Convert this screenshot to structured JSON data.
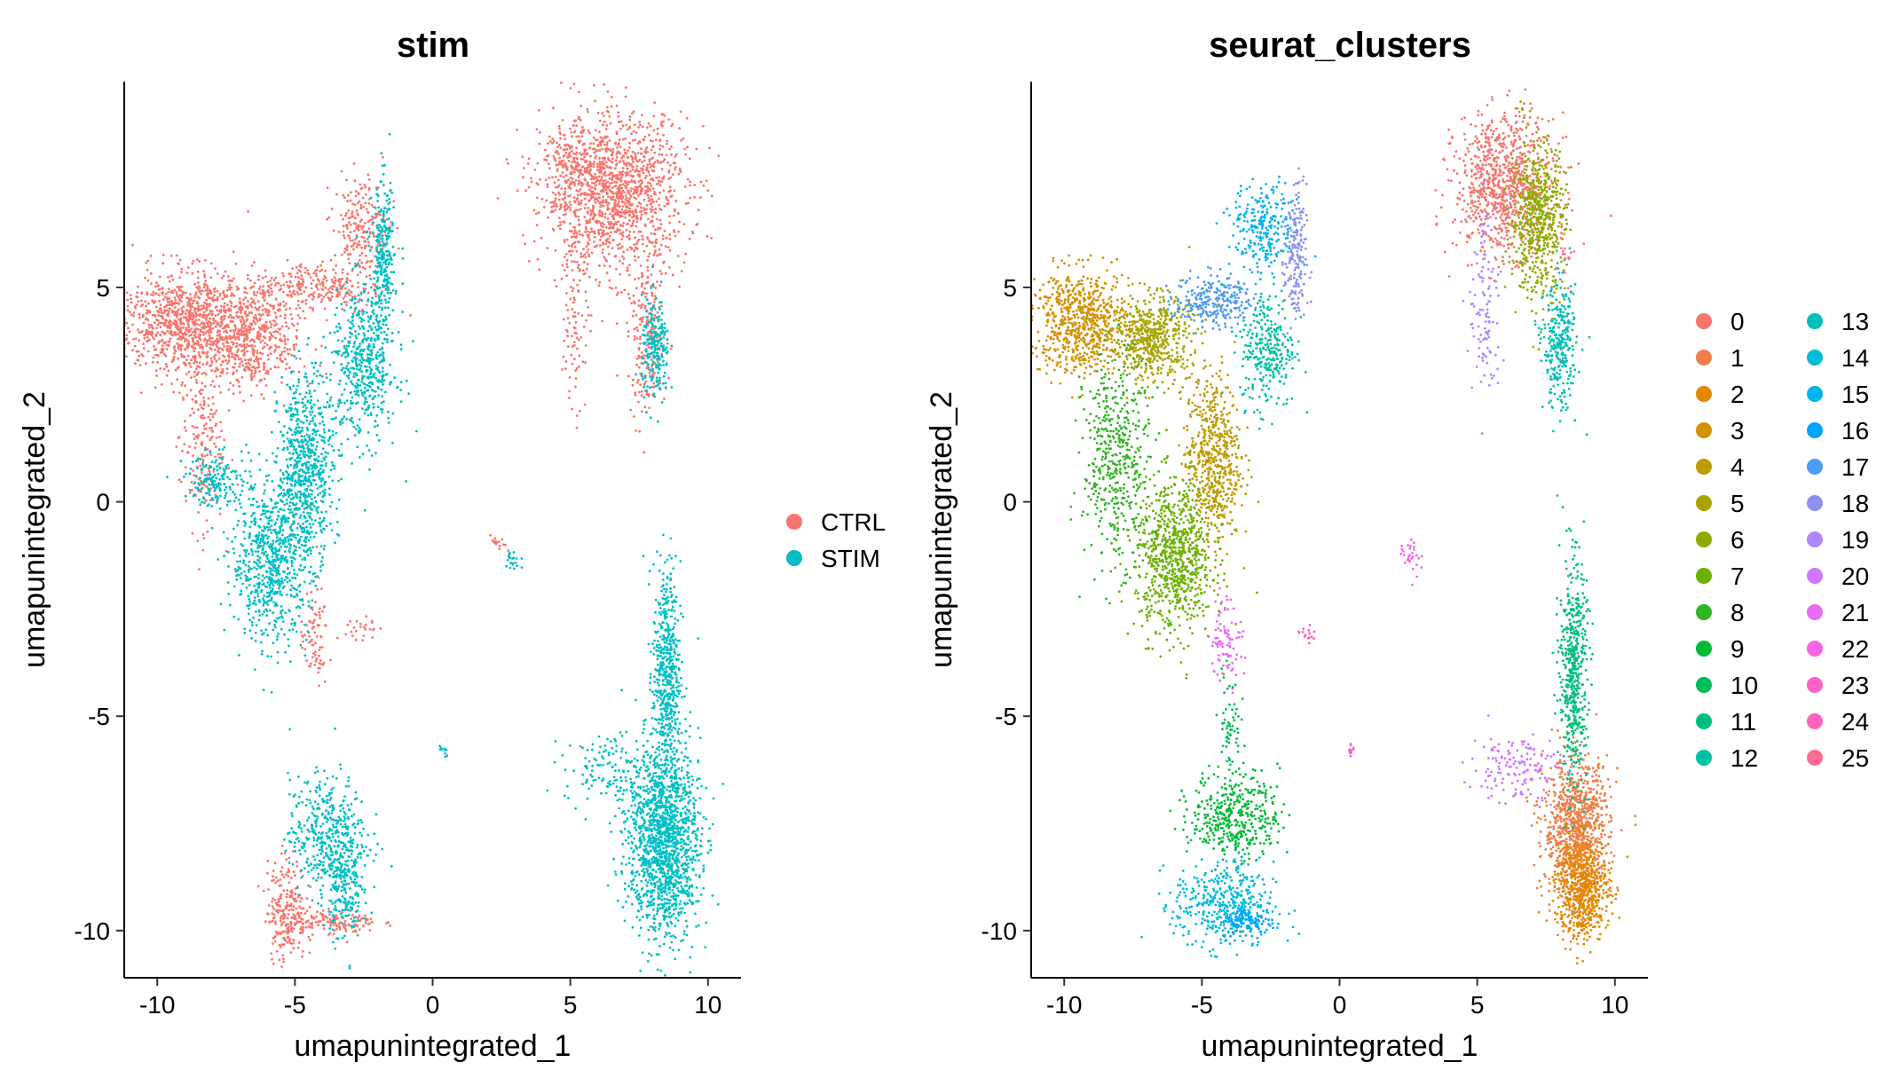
{
  "chart_data": [
    {
      "type": "scatter",
      "title": "stim",
      "xlabel": "umapunintegrated_1",
      "ylabel": "umapunintegrated_2",
      "xlim": [
        -11.2,
        11.2
      ],
      "ylim": [
        -11.1,
        9.8
      ],
      "xticks": [
        -10,
        -5,
        0,
        5,
        10
      ],
      "yticks": [
        -10,
        -5,
        0,
        5
      ],
      "xtick_labels": [
        "-10",
        "-5",
        "0",
        "5",
        "10"
      ],
      "ytick_labels": [
        "-10",
        "-5",
        "0",
        "5"
      ],
      "grid": false,
      "legend_position": "right",
      "legend": [
        {
          "name": "CTRL",
          "color": "#F8766D"
        },
        {
          "name": "STIM",
          "color": "#00BFC4"
        }
      ],
      "point_color_by": "condition",
      "color_map": {
        "CTRL": "#F8766D",
        "STIM": "#00BFC4"
      },
      "regions": [
        {
          "group": "CTRL",
          "x": 6.6,
          "y": 7.2,
          "sx": 1.3,
          "sy": 0.9,
          "n": 1400
        },
        {
          "group": "CTRL",
          "x": 5.0,
          "y": 7.9,
          "sx": 0.5,
          "sy": 0.3,
          "n": 120
        },
        {
          "group": "CTRL",
          "x": 5.2,
          "y": 4.8,
          "sx": 0.25,
          "sy": 1.4,
          "n": 110
        },
        {
          "group": "CTRL",
          "x": 7.8,
          "y": 3.8,
          "sx": 0.35,
          "sy": 0.9,
          "n": 220
        },
        {
          "group": "CTRL",
          "x": -9.0,
          "y": 4.2,
          "sx": 1.2,
          "sy": 0.6,
          "n": 950
        },
        {
          "group": "CTRL",
          "x": -6.6,
          "y": 3.8,
          "sx": 0.9,
          "sy": 0.6,
          "n": 520
        },
        {
          "group": "CTRL",
          "x": -4.2,
          "y": 5.0,
          "sx": 1.2,
          "sy": 0.3,
          "n": 260
        },
        {
          "group": "CTRL",
          "x": -2.6,
          "y": 6.4,
          "sx": 0.5,
          "sy": 0.6,
          "n": 220
        },
        {
          "group": "CTRL",
          "x": -8.4,
          "y": 1.4,
          "sx": 0.4,
          "sy": 1.0,
          "n": 200
        },
        {
          "group": "CTRL",
          "x": -4.3,
          "y": -3.2,
          "sx": 0.25,
          "sy": 0.6,
          "n": 80
        },
        {
          "group": "CTRL",
          "x": -5.3,
          "y": -9.5,
          "sx": 0.35,
          "sy": 0.6,
          "n": 240
        },
        {
          "group": "CTRL",
          "x": -3.6,
          "y": -9.8,
          "sx": 0.8,
          "sy": 0.15,
          "n": 130
        },
        {
          "group": "CTRL",
          "x": 2.4,
          "y": -1.0,
          "sx": 0.15,
          "sy": 0.1,
          "n": 15
        },
        {
          "group": "CTRL",
          "x": -2.6,
          "y": -3.0,
          "sx": 0.3,
          "sy": 0.2,
          "n": 25
        },
        {
          "group": "STIM",
          "x": -2.5,
          "y": 3.2,
          "sx": 0.6,
          "sy": 0.9,
          "n": 520
        },
        {
          "group": "STIM",
          "x": -4.6,
          "y": 0.8,
          "sx": 0.5,
          "sy": 1.1,
          "n": 700
        },
        {
          "group": "STIM",
          "x": -5.9,
          "y": -1.4,
          "sx": 0.7,
          "sy": 0.9,
          "n": 700
        },
        {
          "group": "STIM",
          "x": -1.8,
          "y": 5.6,
          "sx": 0.2,
          "sy": 0.9,
          "n": 260
        },
        {
          "group": "STIM",
          "x": -7.8,
          "y": 0.5,
          "sx": 0.6,
          "sy": 0.3,
          "n": 170
        },
        {
          "group": "STIM",
          "x": 8.4,
          "y": -7.9,
          "sx": 0.65,
          "sy": 1.1,
          "n": 1550
        },
        {
          "group": "STIM",
          "x": 8.5,
          "y": -4.0,
          "sx": 0.25,
          "sy": 1.3,
          "n": 520
        },
        {
          "group": "STIM",
          "x": 6.4,
          "y": -6.2,
          "sx": 0.8,
          "sy": 0.4,
          "n": 130
        },
        {
          "group": "STIM",
          "x": -3.8,
          "y": -7.8,
          "sx": 0.7,
          "sy": 0.7,
          "n": 440
        },
        {
          "group": "STIM",
          "x": -3.2,
          "y": -9.0,
          "sx": 0.3,
          "sy": 0.6,
          "n": 180
        },
        {
          "group": "STIM",
          "x": 8.1,
          "y": 3.5,
          "sx": 0.25,
          "sy": 0.6,
          "n": 220
        },
        {
          "group": "STIM",
          "x": 2.9,
          "y": -1.4,
          "sx": 0.15,
          "sy": 0.2,
          "n": 20
        },
        {
          "group": "STIM",
          "x": 0.4,
          "y": -5.8,
          "sx": 0.08,
          "sy": 0.08,
          "n": 12
        }
      ]
    },
    {
      "type": "scatter",
      "title": "seurat_clusters",
      "xlabel": "umapunintegrated_1",
      "ylabel": "umapunintegrated_2",
      "xlim": [
        -11.2,
        11.2
      ],
      "ylim": [
        -11.1,
        9.8
      ],
      "xticks": [
        -10,
        -5,
        0,
        5,
        10
      ],
      "yticks": [
        -10,
        -5,
        0,
        5
      ],
      "xtick_labels": [
        "-10",
        "-5",
        "0",
        "5",
        "10"
      ],
      "ytick_labels": [
        "-10",
        "-5",
        "0",
        "5"
      ],
      "grid": false,
      "legend_position": "right",
      "legend_columns": 2,
      "legend": [
        {
          "name": "0",
          "color": "#F8766D"
        },
        {
          "name": "1",
          "color": "#EF7F49"
        },
        {
          "name": "2",
          "color": "#E38900"
        },
        {
          "name": "3",
          "color": "#D39200"
        },
        {
          "name": "4",
          "color": "#C09B00"
        },
        {
          "name": "5",
          "color": "#A9A400"
        },
        {
          "name": "6",
          "color": "#8EAB00"
        },
        {
          "name": "7",
          "color": "#6BB100"
        },
        {
          "name": "8",
          "color": "#31B425"
        },
        {
          "name": "9",
          "color": "#00BA38"
        },
        {
          "name": "10",
          "color": "#00BC59"
        },
        {
          "name": "11",
          "color": "#00BF7D"
        },
        {
          "name": "12",
          "color": "#00C1A3"
        },
        {
          "name": "13",
          "color": "#00C0B7"
        },
        {
          "name": "14",
          "color": "#00BCD8"
        },
        {
          "name": "15",
          "color": "#00B4EF"
        },
        {
          "name": "16",
          "color": "#00A5FF"
        },
        {
          "name": "17",
          "color": "#4E9BF5"
        },
        {
          "name": "18",
          "color": "#8F91EA"
        },
        {
          "name": "19",
          "color": "#AE87FF"
        },
        {
          "name": "20",
          "color": "#CF78FF"
        },
        {
          "name": "21",
          "color": "#E76BF3"
        },
        {
          "name": "22",
          "color": "#F564E3"
        },
        {
          "name": "23",
          "color": "#FF61C9"
        },
        {
          "name": "24",
          "color": "#FF62BC"
        },
        {
          "name": "25",
          "color": "#FF6C91"
        }
      ],
      "regions": [
        {
          "group": "0",
          "x": 6.0,
          "y": 7.4,
          "sx": 0.9,
          "sy": 0.8,
          "n": 900
        },
        {
          "group": "6",
          "x": 7.2,
          "y": 6.6,
          "sx": 0.5,
          "sy": 0.9,
          "n": 600
        },
        {
          "group": "19",
          "x": 5.3,
          "y": 4.6,
          "sx": 0.3,
          "sy": 1.3,
          "n": 120
        },
        {
          "group": "13",
          "x": 8.0,
          "y": 3.6,
          "sx": 0.3,
          "sy": 0.7,
          "n": 300
        },
        {
          "group": "25",
          "x": 8.2,
          "y": 5.8,
          "sx": 0.15,
          "sy": 0.2,
          "n": 15
        },
        {
          "group": "3",
          "x": -9.4,
          "y": 4.2,
          "sx": 0.9,
          "sy": 0.6,
          "n": 700
        },
        {
          "group": "5",
          "x": -6.8,
          "y": 3.8,
          "sx": 0.7,
          "sy": 0.5,
          "n": 550
        },
        {
          "group": "17",
          "x": -4.6,
          "y": 4.7,
          "sx": 0.7,
          "sy": 0.3,
          "n": 260
        },
        {
          "group": "15",
          "x": -2.7,
          "y": 6.4,
          "sx": 0.6,
          "sy": 0.5,
          "n": 260
        },
        {
          "group": "18",
          "x": -1.6,
          "y": 5.6,
          "sx": 0.2,
          "sy": 0.9,
          "n": 180
        },
        {
          "group": "12",
          "x": -2.6,
          "y": 3.6,
          "sx": 0.5,
          "sy": 0.7,
          "n": 300
        },
        {
          "group": "4",
          "x": -4.6,
          "y": 1.0,
          "sx": 0.5,
          "sy": 1.0,
          "n": 600
        },
        {
          "group": "7",
          "x": -6.0,
          "y": -1.3,
          "sx": 0.7,
          "sy": 0.9,
          "n": 800
        },
        {
          "group": "8",
          "x": -8.1,
          "y": 1.0,
          "sx": 0.6,
          "sy": 1.2,
          "n": 480
        },
        {
          "group": "21",
          "x": -4.1,
          "y": -3.2,
          "sx": 0.3,
          "sy": 0.5,
          "n": 90
        },
        {
          "group": "22",
          "x": 2.6,
          "y": -1.2,
          "sx": 0.2,
          "sy": 0.25,
          "n": 30
        },
        {
          "group": "23",
          "x": 0.4,
          "y": -5.8,
          "sx": 0.08,
          "sy": 0.08,
          "n": 12
        },
        {
          "group": "20",
          "x": 6.4,
          "y": -6.2,
          "sx": 0.8,
          "sy": 0.4,
          "n": 150
        },
        {
          "group": "1",
          "x": 8.6,
          "y": -7.6,
          "sx": 0.6,
          "sy": 0.8,
          "n": 900
        },
        {
          "group": "2",
          "x": 8.8,
          "y": -9.0,
          "sx": 0.5,
          "sy": 0.6,
          "n": 650
        },
        {
          "group": "11",
          "x": 8.5,
          "y": -4.0,
          "sx": 0.25,
          "sy": 1.3,
          "n": 520
        },
        {
          "group": "9",
          "x": -3.8,
          "y": -7.3,
          "sx": 0.8,
          "sy": 0.5,
          "n": 420
        },
        {
          "group": "14",
          "x": -4.2,
          "y": -9.4,
          "sx": 0.9,
          "sy": 0.5,
          "n": 420
        },
        {
          "group": "16",
          "x": -3.3,
          "y": -9.8,
          "sx": 0.5,
          "sy": 0.2,
          "n": 120
        },
        {
          "group": "10",
          "x": -4.0,
          "y": -5.2,
          "sx": 0.2,
          "sy": 0.6,
          "n": 60
        },
        {
          "group": "24",
          "x": -1.2,
          "y": -3.1,
          "sx": 0.2,
          "sy": 0.15,
          "n": 15
        }
      ]
    }
  ]
}
